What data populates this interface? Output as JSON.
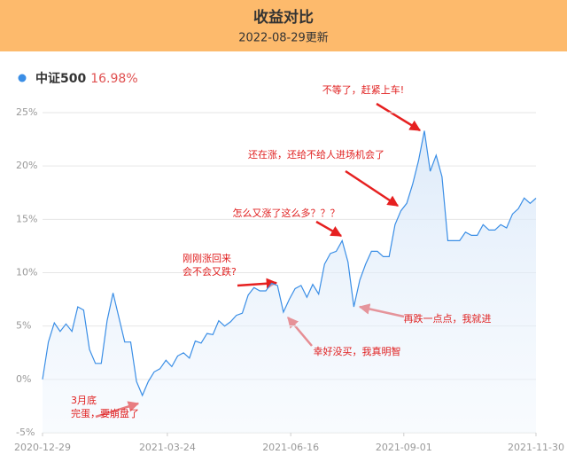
{
  "chart_data": {
    "type": "line",
    "title": "收益对比",
    "subtitle": "2022-08-29更新",
    "x": [
      "2020-12-29",
      "2021-01-02",
      "2021-01-06",
      "2021-01-10",
      "2021-01-14",
      "2021-01-18",
      "2021-01-22",
      "2021-01-26",
      "2021-01-30",
      "2021-02-03",
      "2021-02-07",
      "2021-02-11",
      "2021-02-15",
      "2021-02-19",
      "2021-02-23",
      "2021-02-27",
      "2021-03-03",
      "2021-03-07",
      "2021-03-11",
      "2021-03-15",
      "2021-03-19",
      "2021-03-23",
      "2021-03-27",
      "2021-03-31",
      "2021-04-04",
      "2021-04-08",
      "2021-04-12",
      "2021-04-16",
      "2021-04-20",
      "2021-04-24",
      "2021-04-28",
      "2021-05-02",
      "2021-05-06",
      "2021-05-10",
      "2021-05-14",
      "2021-05-18",
      "2021-05-22",
      "2021-05-26",
      "2021-05-30",
      "2021-06-03",
      "2021-06-07",
      "2021-06-11",
      "2021-06-15",
      "2021-06-19",
      "2021-06-23",
      "2021-06-27",
      "2021-07-01",
      "2021-07-05",
      "2021-07-09",
      "2021-07-13",
      "2021-07-17",
      "2021-07-21",
      "2021-07-25",
      "2021-07-29",
      "2021-08-02",
      "2021-08-06",
      "2021-08-10",
      "2021-08-14",
      "2021-08-18",
      "2021-08-22",
      "2021-08-26",
      "2021-08-30",
      "2021-09-03",
      "2021-09-07",
      "2021-09-11",
      "2021-09-15",
      "2021-09-19",
      "2021-09-23",
      "2021-09-27",
      "2021-10-01",
      "2021-10-05",
      "2021-10-09",
      "2021-10-13",
      "2021-10-17",
      "2021-10-21",
      "2021-10-25",
      "2021-10-29",
      "2021-11-02",
      "2021-11-06",
      "2021-11-10",
      "2021-11-14",
      "2021-11-18",
      "2021-11-22",
      "2021-11-26",
      "2021-11-30"
    ],
    "series": [
      {
        "name": "中证500",
        "color": "#3a8ee6",
        "values": [
          0,
          3.5,
          5.3,
          4.5,
          5.2,
          4.5,
          6.8,
          6.5,
          2.8,
          1.5,
          1.5,
          5.5,
          8.1,
          5.8,
          3.5,
          3.5,
          -0.2,
          -1.5,
          -0.2,
          0.7,
          1.0,
          1.8,
          1.2,
          2.2,
          2.5,
          2.0,
          3.6,
          3.4,
          4.3,
          4.2,
          5.5,
          5.0,
          5.4,
          6,
          6.2,
          7.9,
          8.6,
          8.3,
          8.3,
          9,
          8.8,
          6.3,
          7.5,
          8.5,
          8.8,
          7.7,
          8.9,
          8,
          10.8,
          11.8,
          12,
          13,
          11,
          6.8,
          9.3,
          10.8,
          12,
          12,
          11.5,
          11.5,
          14.5,
          15.8,
          16.5,
          18.3,
          20.5,
          23.3,
          19.5,
          21,
          19,
          13,
          13,
          13,
          13.8,
          13.5,
          13.5,
          14.5,
          14,
          14,
          14.5,
          14.2,
          15.5,
          16,
          17,
          16.5,
          16.98
        ],
        "value_labels": [
          null,
          null,
          null,
          null,
          null,
          null,
          null,
          null,
          null,
          null,
          null,
          null,
          null,
          null,
          null,
          null,
          null,
          null,
          null,
          null,
          null,
          null,
          null,
          null,
          null,
          null,
          null,
          null,
          null,
          null,
          null,
          null,
          null,
          null,
          null,
          null,
          null,
          null,
          null,
          null,
          null,
          null,
          null,
          null,
          null,
          null,
          null,
          null,
          null,
          null,
          null,
          null,
          null,
          null,
          null,
          null,
          null,
          null,
          null,
          null,
          null,
          null,
          null,
          null,
          null,
          null,
          null,
          null,
          null,
          null,
          null,
          null,
          null,
          null,
          null,
          null,
          null,
          null,
          null,
          null,
          null,
          null,
          null,
          null,
          "16.98%"
        ]
      }
    ],
    "xlim": [
      "2020-12-29",
      "2021-11-30"
    ],
    "xticks": [
      "2020-12-29",
      "2021-03-24",
      "2021-06-16",
      "2021-09-01",
      "2021-11-30"
    ],
    "ylim": [
      -5,
      25
    ],
    "yticks": [
      {
        "value": -5,
        "label": "-5%"
      },
      {
        "value": 0,
        "label": "0%"
      },
      {
        "value": 5,
        "label": "5%"
      },
      {
        "value": 10,
        "label": "10%"
      },
      {
        "value": 15,
        "label": "15%"
      },
      {
        "value": 20,
        "label": "20%"
      },
      {
        "value": 25,
        "label": "25%"
      }
    ],
    "grid": true,
    "annotations": [
      {
        "lines": [
          "不等了，赶紧上车!"
        ]
      },
      {
        "lines": [
          "还在涨，还给不给人进场机会了"
        ]
      },
      {
        "lines": [
          "怎么又涨了这么多？？？"
        ]
      },
      {
        "lines": [
          "刚刚涨回来",
          "会不会又跌?"
        ]
      },
      {
        "lines": [
          "幸好没买，我真明智"
        ]
      },
      {
        "lines": [
          "再跌一点点，我就进"
        ]
      },
      {
        "lines": [
          "3月底",
          "完蛋，要崩盘了"
        ]
      }
    ]
  }
}
